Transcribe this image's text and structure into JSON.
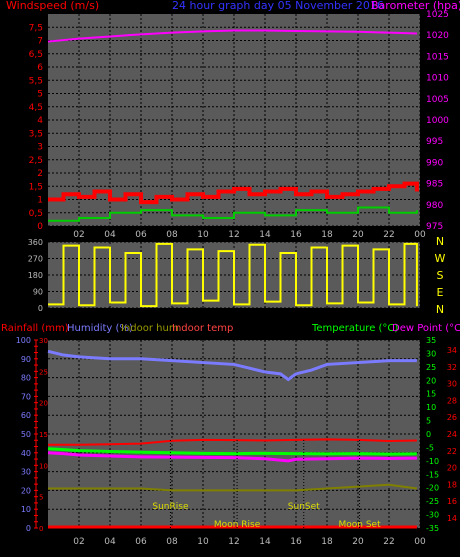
{
  "chart_data": [
    {
      "type": "line",
      "title": "24 hour graph day  05 November 2016",
      "left_axis_label": "Windspeed (m/s)",
      "right_axis_label": "Barometer (hpa)",
      "left_ticks": [
        "0",
        "0,5",
        "1",
        "1,5",
        "2",
        "2,5",
        "3",
        "3,5",
        "4",
        "4,5",
        "5",
        "5,5",
        "6",
        "6,5",
        "7",
        "7,5"
      ],
      "right_ticks": [
        "975",
        "980",
        "985",
        "990",
        "995",
        "1000",
        "1005",
        "1010",
        "1015",
        "1020",
        "1025"
      ],
      "x_ticks": [
        "02",
        "04",
        "06",
        "08",
        "10",
        "12",
        "14",
        "16",
        "18",
        "20",
        "22",
        "00"
      ],
      "x_range_hours": [
        0,
        24
      ],
      "left_range": [
        0,
        8
      ],
      "right_range": [
        975,
        1025
      ],
      "grid": true,
      "colors": {
        "gust": "#ff0000",
        "wind": "#00cc00",
        "barometer": "#ff00ff",
        "background": "#5a5a5a"
      },
      "series": [
        {
          "key": "barometer",
          "axis": "right",
          "x": [
            0,
            2,
            4,
            6,
            8,
            10,
            12,
            14,
            16,
            18,
            20,
            22,
            23.8
          ],
          "values": [
            1018.5,
            1019.2,
            1019.7,
            1020.2,
            1020.6,
            1020.9,
            1021.1,
            1021.1,
            1021.0,
            1020.9,
            1020.8,
            1020.6,
            1020.4
          ]
        },
        {
          "key": "wind",
          "axis": "left",
          "x": [
            0,
            2,
            4,
            6,
            8,
            10,
            12,
            14,
            16,
            18,
            20,
            22,
            23.8
          ],
          "values": [
            0.2,
            0.3,
            0.5,
            0.6,
            0.4,
            0.3,
            0.5,
            0.4,
            0.6,
            0.5,
            0.7,
            0.5,
            0.6
          ]
        },
        {
          "key": "gust",
          "axis": "left",
          "x": [
            0,
            1,
            2,
            3,
            4,
            5,
            6,
            7,
            8,
            9,
            10,
            11,
            12,
            13,
            14,
            15,
            16,
            17,
            18,
            19,
            20,
            21,
            22,
            23,
            23.8
          ],
          "values": [
            1.0,
            1.2,
            1.1,
            1.3,
            1.0,
            1.2,
            0.9,
            1.1,
            1.0,
            1.2,
            1.1,
            1.3,
            1.4,
            1.2,
            1.3,
            1.4,
            1.2,
            1.3,
            1.1,
            1.2,
            1.3,
            1.4,
            1.5,
            1.6,
            1.3
          ]
        }
      ]
    },
    {
      "type": "scatter",
      "title": "",
      "left_ticks": [
        "0",
        "90",
        "180",
        "270",
        "360"
      ],
      "right_ticks": [
        "N",
        "W",
        "S",
        "E",
        "N"
      ],
      "x_range_hours": [
        0,
        24
      ],
      "left_range": [
        0,
        360
      ],
      "colors": {
        "direction": "#ffff00"
      },
      "series": [
        {
          "key": "direction",
          "x": [
            0,
            1,
            2,
            3,
            4,
            5,
            6,
            7,
            8,
            9,
            10,
            11,
            12,
            13,
            14,
            15,
            16,
            17,
            18,
            19,
            20,
            21,
            22,
            23,
            23.8
          ],
          "values": [
            20,
            340,
            15,
            330,
            30,
            300,
            10,
            350,
            25,
            320,
            40,
            310,
            20,
            345,
            35,
            300,
            15,
            330,
            25,
            340,
            30,
            320,
            20,
            350,
            10
          ]
        }
      ]
    },
    {
      "type": "line",
      "title": "",
      "labels": {
        "rain": "Rainfall (mm)",
        "hum": "Humidity (%)",
        "inhum": "Indoor hum",
        "intemp": "Indoor temp",
        "temp": "Temperature (°C)",
        "dew": "Dew Point (°C)"
      },
      "annotations": {
        "sunrise": "SunRise",
        "sunset": "SunSet",
        "moonrise": "Moon Rise",
        "moonset": "Moon Set"
      },
      "rain_ticks": [
        "0",
        "1",
        "2",
        "3",
        "4",
        "5",
        "6",
        "7",
        "8",
        "9",
        "10",
        "11",
        "12",
        "13",
        "14",
        "15",
        "16",
        "17",
        "18",
        "19",
        "20",
        "21",
        "22",
        "23",
        "24",
        "25",
        "26",
        "27",
        "28",
        "29",
        "30"
      ],
      "hum_ticks": [
        "0",
        "10",
        "20",
        "30",
        "40",
        "50",
        "60",
        "70",
        "80",
        "90",
        "100"
      ],
      "temp_ticks": [
        "-35",
        "-30",
        "-25",
        "-20",
        "-15",
        "-10",
        "-5",
        "0",
        "5",
        "10",
        "15",
        "20",
        "25",
        "30",
        "35"
      ],
      "dew_ticks": [
        "14",
        "16",
        "18",
        "20",
        "22",
        "24",
        "26",
        "28",
        "30",
        "32",
        "34"
      ],
      "x_ticks": [
        "02",
        "04",
        "06",
        "08",
        "10",
        "12",
        "14",
        "16",
        "18",
        "20",
        "22",
        "00"
      ],
      "x_range_hours": [
        0,
        24
      ],
      "hum_range": [
        0,
        100
      ],
      "temp_range": [
        -35,
        35
      ],
      "colors": {
        "humidity": "#7b7bff",
        "temperature": "#00ff00",
        "dewpoint": "#ff00ff",
        "indoor_hum": "#808000",
        "indoor_temp": "#ff0000",
        "rain": "#ff0000",
        "background": "#5a5a5a"
      },
      "series": [
        {
          "key": "humidity",
          "axis": "hum",
          "x": [
            0,
            1,
            2,
            4,
            6,
            8,
            10,
            12,
            13,
            14,
            15,
            15.5,
            16,
            17,
            18,
            20,
            22,
            23.8
          ],
          "values": [
            94,
            92,
            91,
            90,
            90,
            89,
            88,
            87,
            85,
            83,
            82,
            79,
            82,
            84,
            87,
            88,
            89,
            89
          ]
        },
        {
          "key": "temperature",
          "axis": "temp",
          "x": [
            0,
            1,
            2,
            4,
            6,
            8,
            10,
            12,
            14,
            16,
            18,
            20,
            22,
            23.8
          ],
          "values": [
            -5.5,
            -5.8,
            -6.2,
            -6.5,
            -6.8,
            -7.0,
            -7.2,
            -7.3,
            -7.2,
            -7.3,
            -7.4,
            -7.3,
            -7.5,
            -7.4
          ]
        },
        {
          "key": "dewpoint",
          "axis": "temp",
          "x": [
            0,
            1,
            2,
            4,
            6,
            8,
            10,
            12,
            14,
            15.5,
            16,
            18,
            20,
            22,
            23.8
          ],
          "values": [
            -7.0,
            -7.3,
            -7.8,
            -8.2,
            -8.5,
            -8.6,
            -8.7,
            -8.8,
            -9.2,
            -10.0,
            -9.4,
            -9.2,
            -9.0,
            -9.1,
            -9.0
          ]
        },
        {
          "key": "indoor_hum",
          "axis": "hum",
          "x": [
            0,
            2,
            4,
            6,
            8,
            10,
            12,
            14,
            16,
            18,
            20,
            22,
            23.8
          ],
          "values": [
            21,
            21,
            21,
            21,
            20,
            20,
            20,
            20,
            20,
            21,
            22,
            23,
            21
          ]
        },
        {
          "key": "indoor_temp",
          "axis": "temp",
          "x": [
            0,
            2,
            4,
            6,
            8,
            10,
            12,
            14,
            16,
            18,
            20,
            22,
            23.8
          ],
          "values": [
            -4.0,
            -4.0,
            -3.8,
            -3.6,
            -2.5,
            -2.2,
            -2.3,
            -2.4,
            -2.2,
            -2.0,
            -2.2,
            -2.6,
            -2.4
          ]
        },
        {
          "key": "rain",
          "axis": "hum",
          "x": [
            0,
            23.8
          ],
          "values": [
            0.5,
            0.5
          ]
        }
      ],
      "events_hours": {
        "sunrise": 7.9,
        "sunset": 16.5,
        "moonrise": 12.2,
        "moonset": 20.1
      }
    }
  ]
}
